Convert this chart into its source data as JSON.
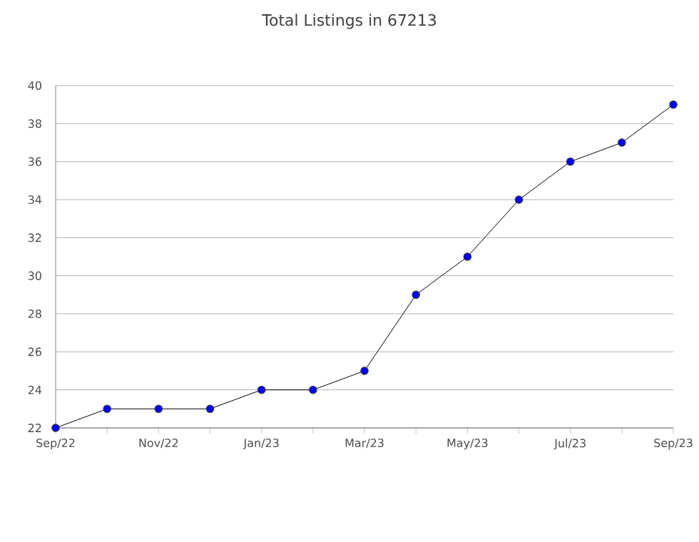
{
  "chart_data": {
    "type": "line",
    "title": "Total Listings in 67213",
    "categories": [
      "Sep/22",
      null,
      "Nov/22",
      null,
      "Jan/23",
      null,
      "Mar/23",
      null,
      "May/23",
      null,
      "Jul/23",
      null,
      "Sep/23"
    ],
    "series": [
      {
        "color": "#0000ff",
        "values": [
          22,
          23,
          23,
          23,
          24,
          24,
          25,
          29,
          31,
          34,
          36,
          37,
          39
        ]
      }
    ],
    "ylim": [
      22,
      40
    ],
    "yticks": [
      22,
      24,
      26,
      28,
      30,
      32,
      34,
      36,
      38,
      40
    ],
    "grid": "y",
    "marker": "circle",
    "line_style": "solid"
  }
}
